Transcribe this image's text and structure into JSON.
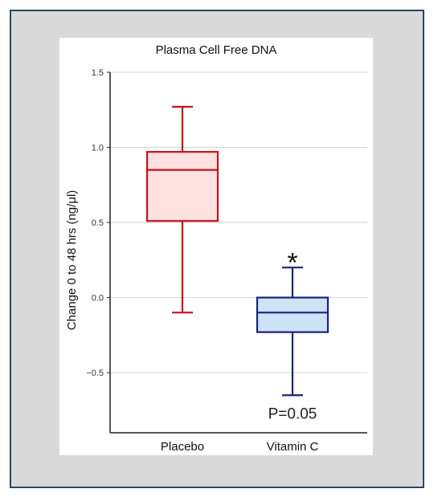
{
  "chart_data": {
    "type": "box",
    "title": "Plasma Cell Free DNA",
    "ylabel": "Change 0 to 48 hrs (ng/μl)",
    "xlabel": "",
    "ylim": [
      -0.9,
      1.5
    ],
    "yticks": [
      -0.5,
      0.0,
      0.5,
      1.0,
      1.5
    ],
    "ytick_labels": [
      "−0.5",
      "0.0",
      "0.5",
      "1.0",
      "1.5"
    ],
    "grid": true,
    "categories": [
      "Placebo",
      "Vitamin C"
    ],
    "boxes": [
      {
        "category": "Placebo",
        "whisker_low": -0.1,
        "q1": 0.51,
        "median": 0.85,
        "q3": 0.97,
        "whisker_high": 1.27,
        "stroke": "#c0141c",
        "fill": "#fde0e0"
      },
      {
        "category": "Vitamin C",
        "whisker_low": -0.65,
        "q1": -0.23,
        "median": -0.1,
        "q3": 0.0,
        "whisker_high": 0.2,
        "stroke": "#1a237e",
        "fill": "#cfe3f7"
      }
    ],
    "annotations": [
      {
        "category": "Vitamin C",
        "text": "*",
        "y": 0.29,
        "kind": "star"
      },
      {
        "category": "Vitamin C",
        "text": "P=0.05",
        "y": -0.77,
        "kind": "pvalue"
      }
    ]
  }
}
